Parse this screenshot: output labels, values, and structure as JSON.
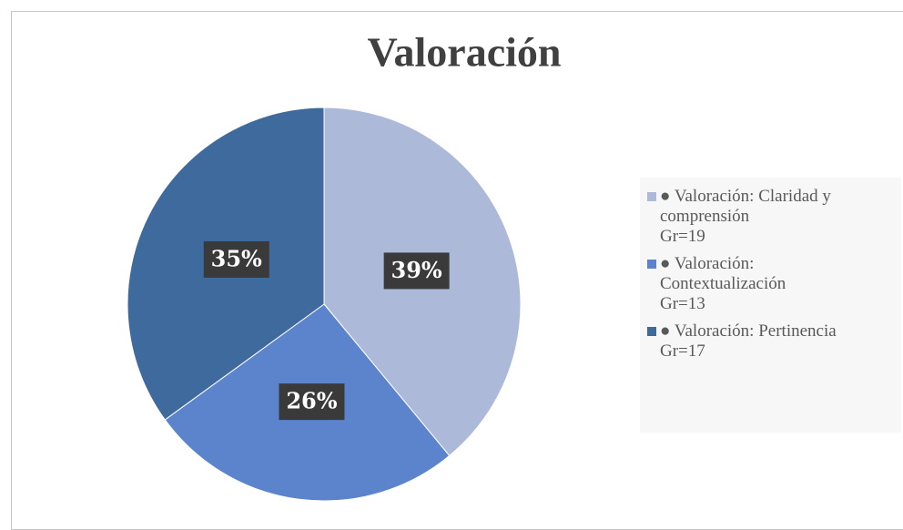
{
  "chart_data": {
    "type": "pie",
    "title": "Valoración",
    "categories": [
      "● Valoración: Claridad y comprensión\nGr=19",
      "● Valoración:\nContextualización\nGr=13",
      "● Valoración: Pertinencia\nGr=17"
    ],
    "values": [
      39,
      26,
      35
    ],
    "value_labels": [
      "39%",
      "26%",
      "35%"
    ],
    "colors": [
      "#adb9d9",
      "#5b84cc",
      "#3e6a9e"
    ]
  }
}
